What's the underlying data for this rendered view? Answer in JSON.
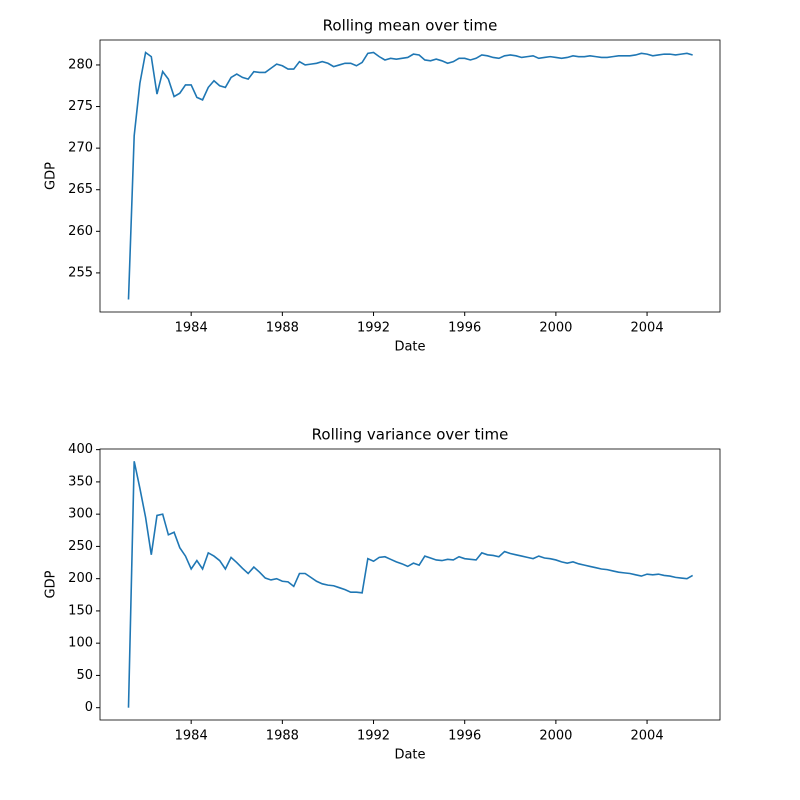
{
  "chart_data": [
    {
      "type": "line",
      "title": "Rolling mean over time",
      "xlabel": "Date",
      "ylabel": "GDP",
      "color": "#1f77b4",
      "x": [
        1981.25,
        1981.5,
        1981.75,
        1982,
        1982.25,
        1982.5,
        1982.75,
        1983,
        1983.25,
        1983.5,
        1983.75,
        1984,
        1984.25,
        1984.5,
        1984.75,
        1985,
        1985.25,
        1985.5,
        1985.75,
        1986,
        1986.25,
        1986.5,
        1986.75,
        1987,
        1987.25,
        1987.5,
        1987.75,
        1988,
        1988.25,
        1988.5,
        1988.75,
        1989,
        1989.25,
        1989.5,
        1989.75,
        1990,
        1990.25,
        1990.5,
        1990.75,
        1991,
        1991.25,
        1991.5,
        1991.75,
        1992,
        1992.25,
        1992.5,
        1992.75,
        1993,
        1993.25,
        1993.5,
        1993.75,
        1994,
        1994.25,
        1994.5,
        1994.75,
        1995,
        1995.25,
        1995.5,
        1995.75,
        1996,
        1996.25,
        1996.5,
        1996.75,
        1997,
        1997.25,
        1997.5,
        1997.75,
        1998,
        1998.25,
        1998.5,
        1998.75,
        1999,
        1999.25,
        1999.5,
        1999.75,
        2000,
        2000.25,
        2000.5,
        2000.75,
        2001,
        2001.25,
        2001.5,
        2001.75,
        2002,
        2002.25,
        2002.5,
        2002.75,
        2003,
        2003.25,
        2003.5,
        2003.75,
        2004,
        2004.25,
        2004.5,
        2004.75,
        2005,
        2005.25,
        2005.5,
        2005.75,
        2006
      ],
      "values": [
        251.8,
        271.5,
        277.8,
        281.5,
        281.0,
        276.5,
        279.2,
        278.3,
        276.2,
        276.6,
        277.6,
        277.6,
        276.1,
        275.8,
        277.3,
        278.1,
        277.5,
        277.3,
        278.5,
        278.9,
        278.5,
        278.3,
        279.2,
        279.1,
        279.1,
        279.6,
        280.1,
        279.9,
        279.5,
        279.5,
        280.4,
        280.0,
        280.1,
        280.2,
        280.4,
        280.2,
        279.8,
        280.0,
        280.2,
        280.2,
        279.9,
        280.3,
        281.4,
        281.5,
        281.0,
        280.6,
        280.8,
        280.7,
        280.8,
        280.9,
        281.3,
        281.2,
        280.6,
        280.5,
        280.7,
        280.5,
        280.2,
        280.4,
        280.8,
        280.8,
        280.6,
        280.8,
        281.2,
        281.1,
        280.9,
        280.8,
        281.1,
        281.2,
        281.1,
        280.9,
        281.0,
        281.1,
        280.8,
        280.9,
        281.0,
        280.9,
        280.8,
        280.9,
        281.1,
        281.0,
        281.0,
        281.1,
        281.0,
        280.9,
        280.9,
        281.0,
        281.1,
        281.1,
        281.1,
        281.2,
        281.4,
        281.3,
        281.1,
        281.2,
        281.3,
        281.3,
        281.2,
        281.3,
        281.4,
        281.2
      ],
      "xlim": [
        1980.0,
        2007.2
      ],
      "xticks": [
        1984,
        1988,
        1992,
        1996,
        2000,
        2004
      ],
      "ylim": [
        250.3,
        283.0
      ],
      "yticks": [
        255,
        260,
        265,
        270,
        275,
        280
      ]
    },
    {
      "type": "line",
      "title": "Rolling variance over time",
      "xlabel": "Date",
      "ylabel": "GDP",
      "color": "#1f77b4",
      "x": [
        1981.25,
        1981.5,
        1981.75,
        1982,
        1982.25,
        1982.5,
        1982.75,
        1983,
        1983.25,
        1983.5,
        1983.75,
        1984,
        1984.25,
        1984.5,
        1984.75,
        1985,
        1985.25,
        1985.5,
        1985.75,
        1986,
        1986.25,
        1986.5,
        1986.75,
        1987,
        1987.25,
        1987.5,
        1987.75,
        1988,
        1988.25,
        1988.5,
        1988.75,
        1989,
        1989.25,
        1989.5,
        1989.75,
        1990,
        1990.25,
        1990.5,
        1990.75,
        1991,
        1991.25,
        1991.5,
        1991.75,
        1992,
        1992.25,
        1992.5,
        1992.75,
        1993,
        1993.25,
        1993.5,
        1993.75,
        1994,
        1994.25,
        1994.5,
        1994.75,
        1995,
        1995.25,
        1995.5,
        1995.75,
        1996,
        1996.25,
        1996.5,
        1996.75,
        1997,
        1997.25,
        1997.5,
        1997.75,
        1998,
        1998.25,
        1998.5,
        1998.75,
        1999,
        1999.25,
        1999.5,
        1999.75,
        2000,
        2000.25,
        2000.5,
        2000.75,
        2001,
        2001.25,
        2001.5,
        2001.75,
        2002,
        2002.25,
        2002.5,
        2002.75,
        2003,
        2003.25,
        2003.5,
        2003.75,
        2004,
        2004.25,
        2004.5,
        2004.75,
        2005,
        2005.25,
        2005.5,
        2005.75,
        2006
      ],
      "values": [
        0,
        382,
        340,
        295,
        237,
        298,
        300,
        268,
        272,
        248,
        235,
        215,
        228,
        215,
        240,
        235,
        228,
        215,
        233,
        225,
        216,
        208,
        218,
        210,
        201,
        198,
        200,
        196,
        195,
        188,
        208,
        208,
        202,
        196,
        192,
        190,
        189,
        186,
        183,
        179,
        179,
        178,
        231,
        227,
        233,
        234,
        230,
        226,
        223,
        219,
        224,
        221,
        235,
        232,
        229,
        228,
        230,
        229,
        234,
        231,
        230,
        229,
        240,
        237,
        236,
        234,
        242,
        239,
        237,
        235,
        233,
        231,
        235,
        232,
        231,
        229,
        226,
        224,
        226,
        223,
        221,
        219,
        217,
        215,
        214,
        212,
        210,
        209,
        208,
        206,
        204,
        207,
        206,
        207,
        205,
        204,
        202,
        201,
        200,
        205
      ],
      "xlim": [
        1980.0,
        2007.2
      ],
      "xticks": [
        1984,
        1988,
        1992,
        1996,
        2000,
        2004
      ],
      "ylim": [
        -19.1,
        401
      ],
      "yticks": [
        0,
        50,
        100,
        150,
        200,
        250,
        300,
        350,
        400
      ]
    }
  ]
}
